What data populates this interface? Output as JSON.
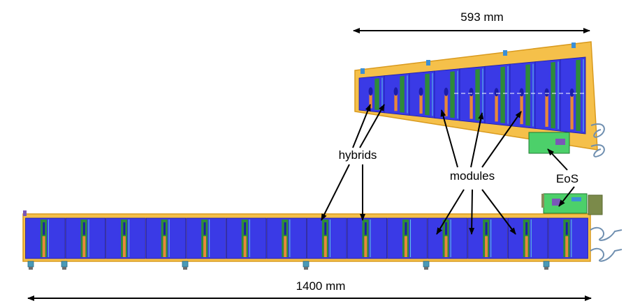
{
  "labels": {
    "top_dimension": "593 mm",
    "bottom_dimension": "1400 mm",
    "hybrids": "hybrids",
    "modules": "modules",
    "eos": "EoS"
  },
  "colors": {
    "frame": "#f5c04a",
    "frame_edge": "#d99a1e",
    "module": "#3a3ae6",
    "module_dark": "#1c1ca8",
    "hybrid": "#2e8b3a",
    "cooling": "#e8883a",
    "eos_board": "#4cd06a",
    "cable": "#6f8fb0",
    "text": "#000000"
  },
  "structures": {
    "straight_stave_modules": 14,
    "endcap_petal_modules": 9
  }
}
